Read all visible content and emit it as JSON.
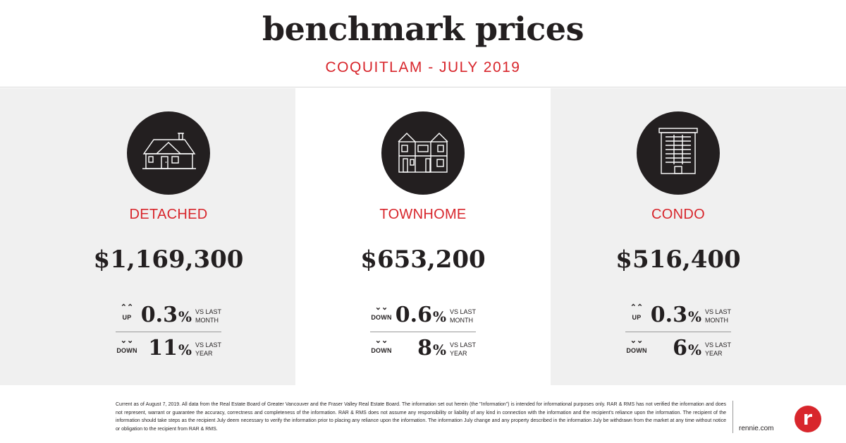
{
  "header": {
    "title": "benchmark prices",
    "subtitle": "COQUITLAM - JULY 2019"
  },
  "colors": {
    "accent": "#d8262c",
    "dark": "#231f20",
    "panel_gray": "#f0f0f0"
  },
  "panels": [
    {
      "icon": "detached-house-icon",
      "label": "DETACHED",
      "price": "$1,169,300",
      "month": {
        "direction": "UP",
        "arrow": "⌃⌃",
        "value": "0.3",
        "sign": "%",
        "vs1": "VS LAST",
        "vs2": "MONTH"
      },
      "year": {
        "direction": "DOWN",
        "arrow": "⌄⌄",
        "value": "11",
        "sign": "%",
        "vs1": "VS LAST",
        "vs2": "YEAR"
      }
    },
    {
      "icon": "townhome-icon",
      "label": "TOWNHOME",
      "price": "$653,200",
      "month": {
        "direction": "DOWN",
        "arrow": "⌄⌄",
        "value": "0.6",
        "sign": "%",
        "vs1": "VS LAST",
        "vs2": "MONTH"
      },
      "year": {
        "direction": "DOWN",
        "arrow": "⌄⌄",
        "value": "8",
        "sign": "%",
        "vs1": "VS LAST",
        "vs2": "YEAR"
      }
    },
    {
      "icon": "condo-building-icon",
      "label": "CONDO",
      "price": "$516,400",
      "month": {
        "direction": "UP",
        "arrow": "⌃⌃",
        "value": "0.3",
        "sign": "%",
        "vs1": "VS LAST",
        "vs2": "MONTH"
      },
      "year": {
        "direction": "DOWN",
        "arrow": "⌄⌄",
        "value": "6",
        "sign": "%",
        "vs1": "VS LAST",
        "vs2": "YEAR"
      }
    }
  ],
  "footer": {
    "disclaimer": "Current as of August 7, 2019. All data from the Real Estate Board of Greater Vancouver and the Fraser Valley Real Estate Board. The information set out herein (the \"Information\") is intended for informational purposes only. RAR & RMS has not verified the information and does not represent, warrant or guarantee the accuracy, correctness and completeness of the information. RAR & RMS does not assume any responsibility or liability of any kind in connection with the information and the recipient's reliance upon the information. The recipient of the information should take steps as the recipient July deem necessary to verify the information prior to placing any reliance upon the information. The information July change and any property described in the information July be withdrawn from the market at any time without notice or obligation to the recipient from RAR & RMS.",
    "site": "rennie.com",
    "logo_icon": "rennie-logo-icon"
  }
}
